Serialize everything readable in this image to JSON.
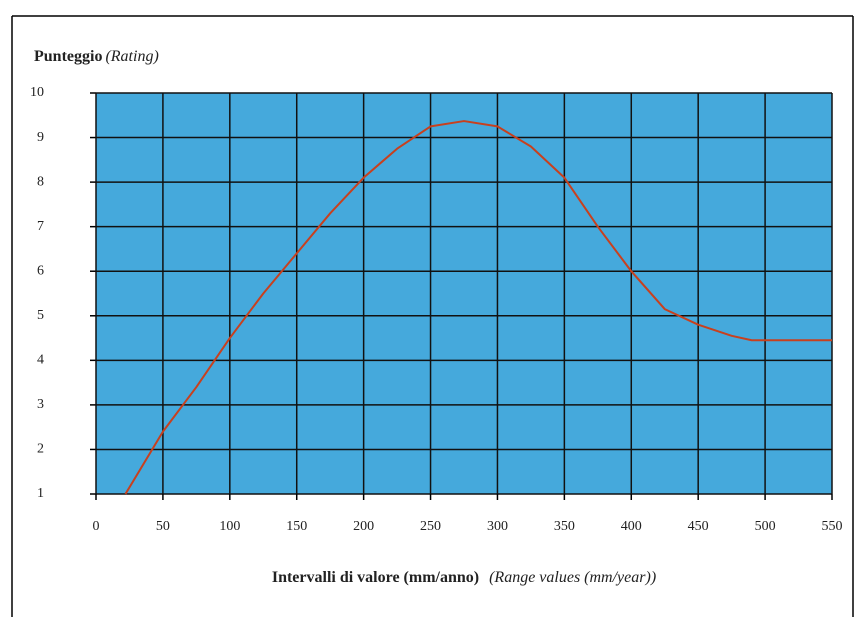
{
  "chart_data": {
    "type": "line",
    "title": "Punteggio",
    "title_note": "(Rating)",
    "xlabel": "Intervalli di valore (mm/anno)",
    "xlabel_note": "(Range values (mm/year))",
    "x": [
      22,
      50,
      75,
      100,
      125,
      150,
      175,
      200,
      225,
      250,
      275,
      300,
      325,
      350,
      375,
      400,
      425,
      450,
      475,
      490,
      550
    ],
    "series": [
      {
        "name": "Punteggio",
        "color": "#c8401e",
        "values": [
          1,
          2.4,
          3.4,
          4.5,
          5.5,
          6.4,
          7.3,
          8.1,
          8.75,
          9.25,
          9.37,
          9.25,
          8.8,
          8.1,
          7.0,
          6.0,
          5.15,
          4.8,
          4.55,
          4.45,
          4.45
        ]
      }
    ],
    "xlim": [
      0,
      550
    ],
    "xticks": [
      0,
      50,
      100,
      150,
      200,
      250,
      300,
      350,
      400,
      450,
      500,
      550
    ],
    "ylim": [
      1,
      10
    ],
    "yticks": [
      1,
      2,
      3,
      4,
      5,
      6,
      7,
      8,
      9,
      10
    ],
    "grid": true,
    "plot_background": "#45a9dc"
  }
}
